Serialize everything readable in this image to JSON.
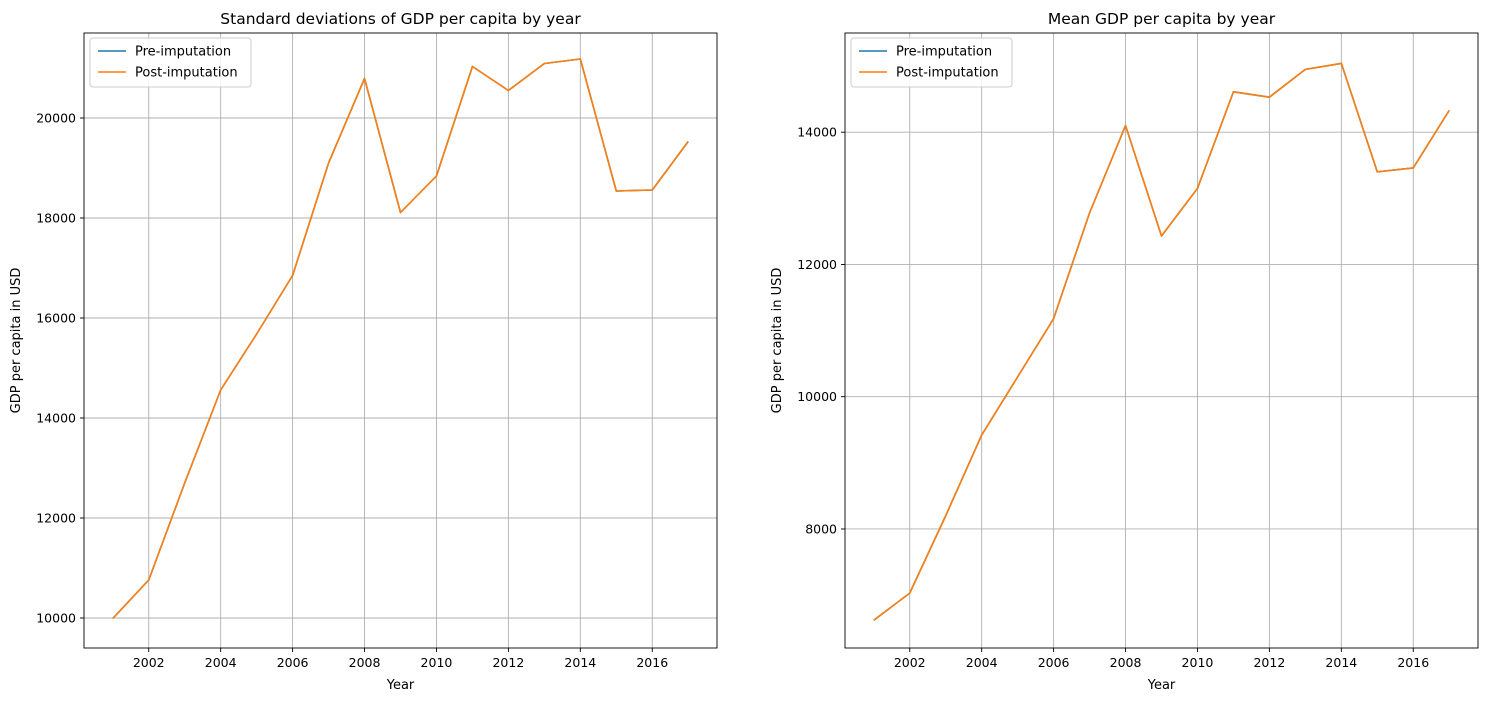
{
  "chart_data": [
    {
      "type": "line",
      "title": "Standard deviations of GDP per capita by year",
      "xlabel": "Year",
      "ylabel": "GDP per capita in USD",
      "x": [
        2001,
        2002,
        2003,
        2004,
        2005,
        2006,
        2007,
        2008,
        2009,
        2010,
        2011,
        2012,
        2013,
        2014,
        2015,
        2016,
        2017
      ],
      "xlim": [
        2000.2,
        2017.8
      ],
      "ylim": [
        9400,
        21700
      ],
      "xticks": [
        "2002",
        "2004",
        "2006",
        "2008",
        "2010",
        "2012",
        "2014",
        "2016"
      ],
      "yticks": [
        "10000",
        "12000",
        "14000",
        "16000",
        "18000",
        "20000"
      ],
      "grid": true,
      "legend_position": "top-left",
      "series": [
        {
          "name": "Pre-imputation",
          "color": "#1f77b4",
          "values": [
            9990,
            10760,
            12700,
            14560,
            15680,
            16850,
            19100,
            20790,
            18110,
            18840,
            21030,
            20550,
            21090,
            21180,
            18540,
            18560,
            19530
          ]
        },
        {
          "name": "Post-imputation",
          "color": "#ff7f0e",
          "values": [
            9990,
            10760,
            12700,
            14560,
            15680,
            16850,
            19100,
            20790,
            18110,
            18840,
            21030,
            20550,
            21090,
            21180,
            18540,
            18560,
            19530
          ]
        }
      ]
    },
    {
      "type": "line",
      "title": "Mean GDP per capita by year",
      "xlabel": "Year",
      "ylabel": "GDP per capita in USD",
      "x": [
        2001,
        2002,
        2003,
        2004,
        2005,
        2006,
        2007,
        2008,
        2009,
        2010,
        2011,
        2012,
        2013,
        2014,
        2015,
        2016,
        2017
      ],
      "xlim": [
        2000.2,
        2017.8
      ],
      "ylim": [
        6200,
        15500
      ],
      "xticks": [
        "2002",
        "2004",
        "2006",
        "2008",
        "2010",
        "2012",
        "2014",
        "2016"
      ],
      "yticks": [
        "8000",
        "10000",
        "12000",
        "14000"
      ],
      "grid": true,
      "legend_position": "top-left",
      "series": [
        {
          "name": "Pre-imputation",
          "color": "#1f77b4",
          "values": [
            6620,
            7030,
            8200,
            9420,
            10300,
            11180,
            12780,
            14100,
            12430,
            13150,
            14610,
            14530,
            14950,
            15040,
            13400,
            13460,
            14330
          ]
        },
        {
          "name": "Post-imputation",
          "color": "#ff7f0e",
          "values": [
            6620,
            7030,
            8200,
            9420,
            10300,
            11180,
            12780,
            14100,
            12430,
            13150,
            14610,
            14530,
            14950,
            15040,
            13400,
            13460,
            14330
          ]
        }
      ]
    }
  ]
}
